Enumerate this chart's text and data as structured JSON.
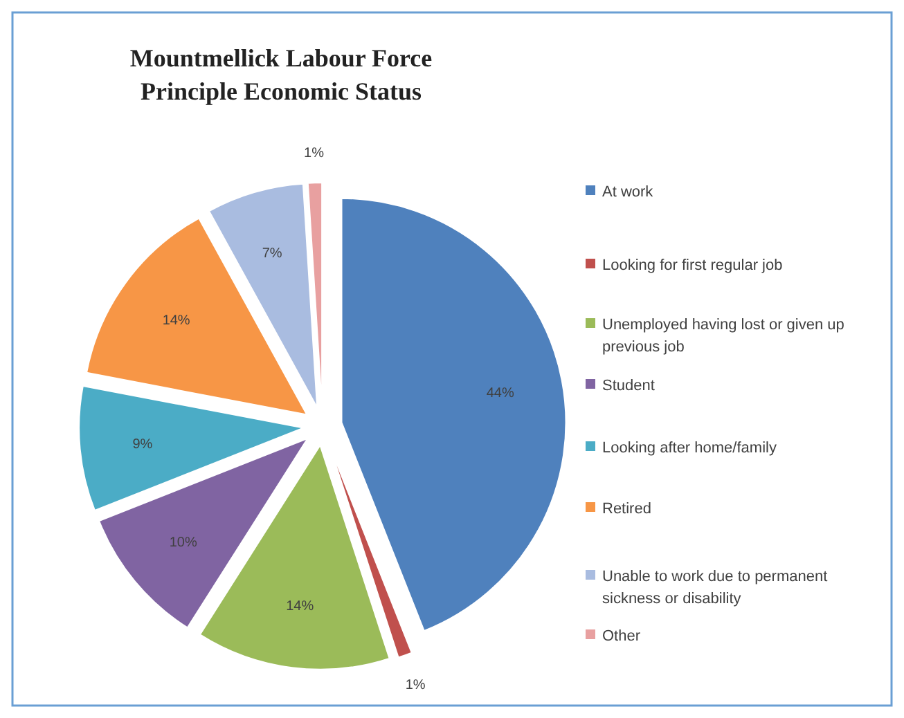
{
  "chart_data": {
    "type": "pie",
    "title": "Mountmellick Labour Force\nPrinciple Economic Status",
    "categories": [
      "At work",
      "Looking for first regular job",
      "Unemployed having lost or given up previous job",
      "Student",
      "Looking after home/family",
      "Retired",
      "Unable to work due to permanent sickness or disability",
      "Other"
    ],
    "values": [
      44,
      1,
      14,
      10,
      9,
      14,
      7,
      1
    ],
    "colors": [
      "#4f81bd",
      "#c0504d",
      "#9bbb59",
      "#8064a2",
      "#4bacc6",
      "#f79646",
      "#a9bce0",
      "#e8a0a0"
    ],
    "value_labels": [
      "44%",
      "1%",
      "14%",
      "10%",
      "9%",
      "14%",
      "7%",
      "1%"
    ],
    "legend": "right"
  }
}
